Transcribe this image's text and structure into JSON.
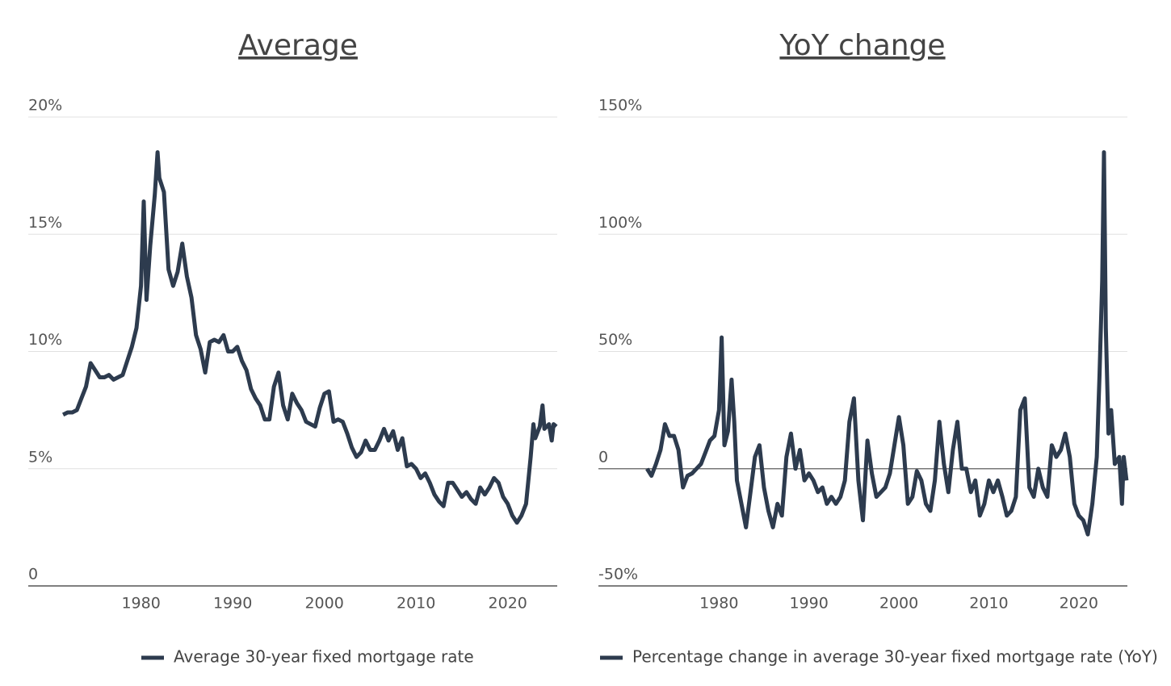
{
  "chart_data": [
    {
      "type": "line",
      "title": "Average",
      "xlim": [
        1967.7,
        2025.4
      ],
      "xticks": [
        1980,
        1990,
        2000,
        2010,
        2020
      ],
      "ylim": [
        0,
        20
      ],
      "yticks": [
        0,
        {
          "value": 5,
          "label": "5%"
        },
        {
          "value": 10,
          "label": "10%"
        },
        {
          "value": 15,
          "label": "15%"
        },
        {
          "value": 20,
          "label": "20%"
        }
      ],
      "grid": true,
      "series": [
        {
          "name": "Average 30-year fixed mortgage rate",
          "color": "#2d3b4e",
          "x": [
            1971.5,
            1972,
            1972.5,
            1973,
            1973.5,
            1974,
            1974.5,
            1975,
            1975.5,
            1976,
            1976.5,
            1977,
            1977.5,
            1978,
            1978.5,
            1979,
            1979.5,
            1980,
            1980.3,
            1980.6,
            1981,
            1981.5,
            1981.8,
            1982,
            1982.5,
            1983,
            1983.5,
            1984,
            1984.5,
            1985,
            1985.5,
            1986,
            1986.5,
            1987,
            1987.5,
            1988,
            1988.5,
            1989,
            1989.5,
            1990,
            1990.5,
            1991,
            1991.5,
            1992,
            1992.5,
            1993,
            1993.5,
            1994,
            1994.5,
            1995,
            1995.5,
            1996,
            1996.5,
            1997,
            1997.5,
            1998,
            1998.5,
            1999,
            1999.5,
            2000,
            2000.5,
            2001,
            2001.5,
            2002,
            2002.5,
            2003,
            2003.5,
            2004,
            2004.5,
            2005,
            2005.5,
            2006,
            2006.5,
            2007,
            2007.5,
            2008,
            2008.5,
            2009,
            2009.5,
            2010,
            2010.5,
            2011,
            2011.5,
            2012,
            2012.5,
            2013,
            2013.5,
            2014,
            2014.5,
            2015,
            2015.5,
            2016,
            2016.5,
            2017,
            2017.5,
            2018,
            2018.5,
            2019,
            2019.5,
            2020,
            2020.5,
            2021,
            2021.5,
            2022,
            2022.5,
            2022.8,
            2023,
            2023.5,
            2023.8,
            2024,
            2024.5,
            2024.8,
            2025,
            2025.3
          ],
          "values": [
            7.3,
            7.4,
            7.4,
            7.5,
            8.0,
            8.5,
            9.5,
            9.2,
            8.9,
            8.9,
            9.0,
            8.8,
            8.9,
            9.0,
            9.6,
            10.2,
            11.0,
            12.8,
            16.4,
            12.2,
            14.5,
            16.7,
            18.5,
            17.4,
            16.8,
            13.5,
            12.8,
            13.4,
            14.6,
            13.2,
            12.3,
            10.7,
            10.1,
            9.1,
            10.4,
            10.5,
            10.4,
            10.7,
            10.0,
            10.0,
            10.2,
            9.6,
            9.2,
            8.4,
            8.0,
            7.7,
            7.1,
            7.1,
            8.5,
            9.1,
            7.7,
            7.1,
            8.2,
            7.8,
            7.5,
            7.0,
            6.9,
            6.8,
            7.6,
            8.2,
            8.3,
            7.0,
            7.1,
            7.0,
            6.5,
            5.9,
            5.5,
            5.7,
            6.2,
            5.8,
            5.8,
            6.2,
            6.7,
            6.2,
            6.6,
            5.8,
            6.3,
            5.1,
            5.2,
            5.0,
            4.6,
            4.8,
            4.4,
            3.9,
            3.6,
            3.4,
            4.4,
            4.4,
            4.1,
            3.8,
            4.0,
            3.7,
            3.5,
            4.2,
            3.9,
            4.2,
            4.6,
            4.4,
            3.8,
            3.5,
            3.0,
            2.7,
            3.0,
            3.5,
            5.5,
            6.9,
            6.3,
            6.8,
            7.7,
            6.7,
            6.9,
            6.2,
            6.9,
            6.8
          ]
        }
      ]
    },
    {
      "type": "line",
      "title": "YoY change",
      "xlim": [
        1966.6,
        2025.4
      ],
      "xticks": [
        1980,
        1990,
        2000,
        2010,
        2020
      ],
      "ylim": [
        -50,
        150
      ],
      "yticks": [
        {
          "value": -50,
          "label": "-50%"
        },
        0,
        {
          "value": 50,
          "label": "50%"
        },
        {
          "value": 100,
          "label": "100%"
        },
        {
          "value": 150,
          "label": "150%"
        }
      ],
      "grid": true,
      "series": [
        {
          "name": "Percentage change in average 30-year fixed mortgage rate (YoY)",
          "color": "#2d3b4e",
          "x": [
            1972,
            1972.5,
            1973,
            1973.5,
            1974,
            1974.5,
            1975,
            1975.5,
            1976,
            1976.5,
            1977,
            1977.5,
            1978,
            1978.5,
            1979,
            1979.5,
            1980,
            1980.3,
            1980.6,
            1981,
            1981.4,
            1981.7,
            1982,
            1982.5,
            1983,
            1983.5,
            1984,
            1984.5,
            1985,
            1985.5,
            1986,
            1986.5,
            1987,
            1987.5,
            1988,
            1988.5,
            1989,
            1989.5,
            1990,
            1990.5,
            1991,
            1991.5,
            1992,
            1992.5,
            1993,
            1993.5,
            1994,
            1994.5,
            1995,
            1995.5,
            1996,
            1996.5,
            1997,
            1997.5,
            1998,
            1998.5,
            1999,
            1999.5,
            2000,
            2000.5,
            2001,
            2001.5,
            2002,
            2002.5,
            2003,
            2003.5,
            2004,
            2004.5,
            2005,
            2005.5,
            2006,
            2006.5,
            2007,
            2007.5,
            2008,
            2008.5,
            2009,
            2009.5,
            2010,
            2010.5,
            2011,
            2011.5,
            2012,
            2012.5,
            2013,
            2013.5,
            2014,
            2014.5,
            2015,
            2015.5,
            2016,
            2016.5,
            2017,
            2017.5,
            2018,
            2018.5,
            2019,
            2019.5,
            2020,
            2020.5,
            2021,
            2021.5,
            2022,
            2022.3,
            2022.6,
            2022.8,
            2023,
            2023.3,
            2023.6,
            2024,
            2024.5,
            2024.8,
            2025,
            2025.3
          ],
          "values": [
            0,
            -3,
            2,
            8,
            19,
            14,
            14,
            8,
            -8,
            -3,
            -2,
            0,
            2,
            7,
            12,
            14,
            25,
            56,
            10,
            16,
            38,
            20,
            -5,
            -15,
            -25,
            -10,
            5,
            10,
            -8,
            -18,
            -25,
            -15,
            -20,
            5,
            15,
            0,
            8,
            -5,
            -2,
            -5,
            -10,
            -8,
            -15,
            -12,
            -15,
            -12,
            -5,
            20,
            30,
            -5,
            -22,
            12,
            -2,
            -12,
            -10,
            -8,
            -2,
            10,
            22,
            10,
            -15,
            -12,
            -1,
            -5,
            -15,
            -18,
            -5,
            20,
            2,
            -10,
            8,
            20,
            0,
            0,
            -10,
            -5,
            -20,
            -15,
            -5,
            -10,
            -5,
            -12,
            -20,
            -18,
            -12,
            25,
            30,
            -8,
            -12,
            0,
            -8,
            -12,
            10,
            5,
            8,
            15,
            5,
            -15,
            -20,
            -22,
            -28,
            -15,
            5,
            40,
            80,
            135,
            60,
            15,
            25,
            2,
            5,
            -15,
            5,
            -5
          ]
        }
      ]
    }
  ]
}
